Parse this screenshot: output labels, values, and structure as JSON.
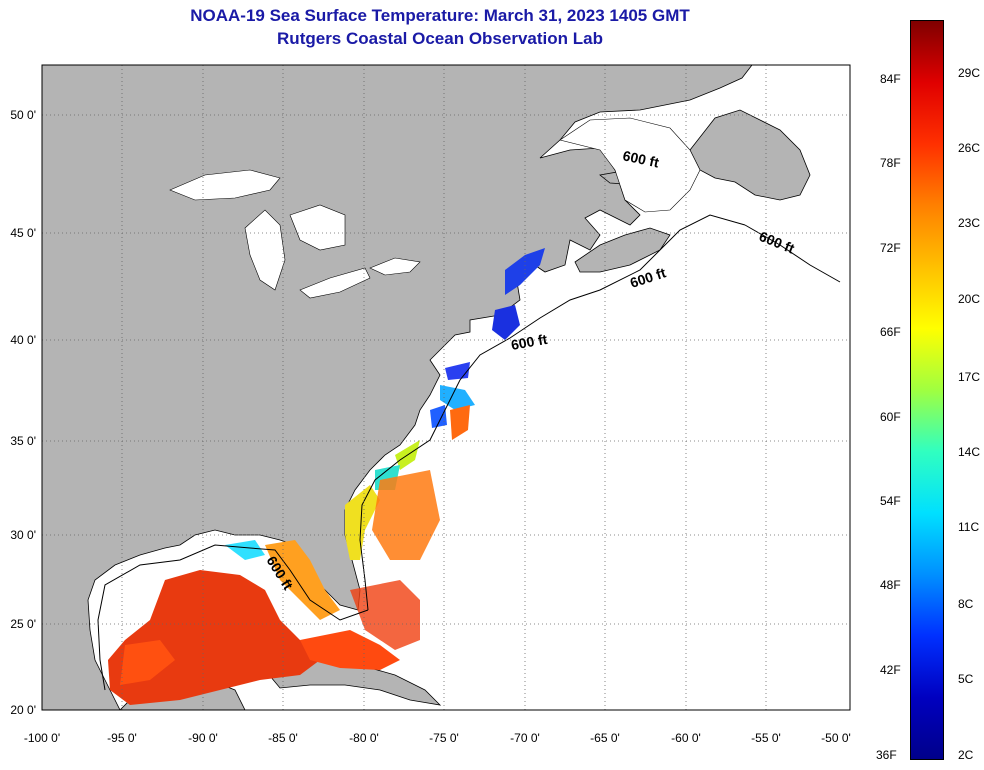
{
  "title": {
    "line1": "NOAA-19 Sea Surface Temperature:  March 31, 2023 1405 GMT",
    "line2": "Rutgers Coastal Ocean Observation Lab"
  },
  "map": {
    "lon_range": [
      -100,
      -50
    ],
    "lat_range": [
      20,
      52.5
    ],
    "lon_ticks": [
      "-100 0'",
      "-95 0'",
      "-90 0'",
      "-85 0'",
      "-80 0'",
      "-75 0'",
      "-70 0'",
      "-65 0'",
      "-60 0'",
      "-55 0'",
      "-50 0'"
    ],
    "lat_ticks": [
      "50 0'",
      "45 0'",
      "40 0'",
      "35 0'",
      "30 0'",
      "25 0'",
      "20 0'"
    ],
    "isobath_labels": [
      "600 ft",
      "600 ft",
      "600 ft",
      "600 ft",
      "600 ft"
    ],
    "colors": {
      "land": "#b4b4b4",
      "ocean": "#ffffff",
      "grid": "#666666"
    }
  },
  "colorbar": {
    "fahrenheit_labels": [
      "84F",
      "78F",
      "72F",
      "66F",
      "60F",
      "54F",
      "48F",
      "42F",
      "36F"
    ],
    "celsius_labels": [
      "29C",
      "26C",
      "23C",
      "20C",
      "17C",
      "14C",
      "11C",
      "8C",
      "5C",
      "2C"
    ],
    "gradient_colors": [
      "#800000",
      "#e00000",
      "#ff3000",
      "#ff8000",
      "#ffc000",
      "#ffff00",
      "#a0ff40",
      "#30ffc0",
      "#00e0ff",
      "#0090ff",
      "#0030ff",
      "#0000c0",
      "#00008a"
    ]
  }
}
